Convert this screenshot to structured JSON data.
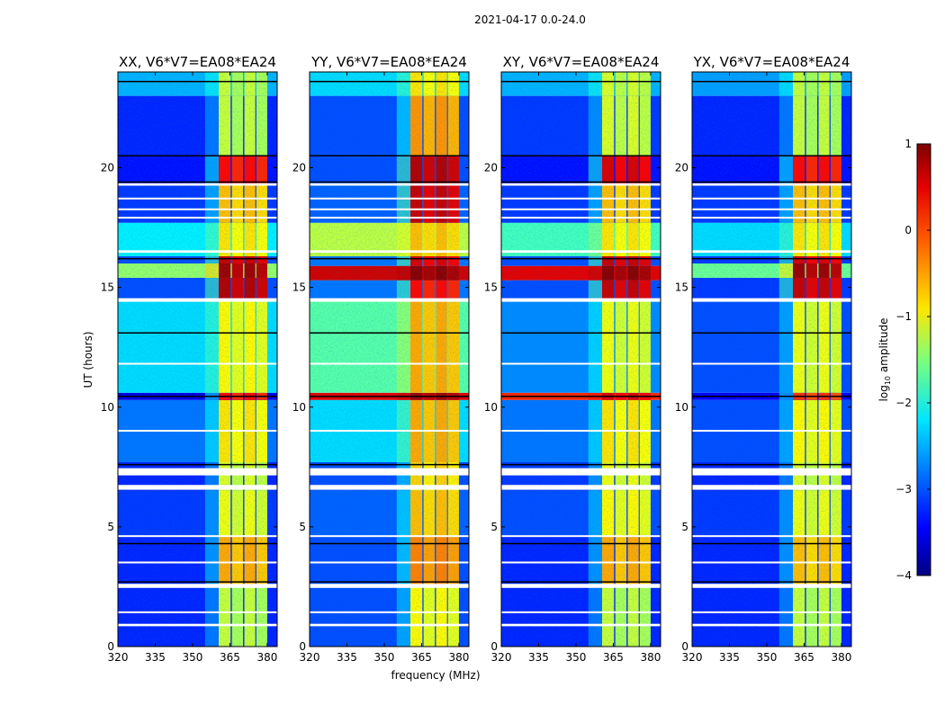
{
  "chart_data": {
    "type": "heatmap",
    "title": "2021-04-17 0.0-24.0",
    "xlabel": "frequency (MHz)",
    "ylabel": "UT (hours)",
    "xlim": [
      320,
      384
    ],
    "ylim": [
      0,
      24
    ],
    "xticks": [
      "320",
      "335",
      "350",
      "365",
      "380"
    ],
    "xtick_values": [
      320,
      335,
      350,
      365,
      380
    ],
    "yticks": [
      "0",
      "5",
      "10",
      "15",
      "20"
    ],
    "ytick_values": [
      0,
      5,
      10,
      15,
      20
    ],
    "colorbar": {
      "label_main": "log",
      "label_sub": "10",
      "label_rest": " amplitude",
      "range": [
        -4,
        1
      ],
      "ticks": [
        "−4",
        "−3",
        "−2",
        "−1",
        "0",
        "1"
      ],
      "tick_values": [
        -4,
        -3,
        -2,
        -1,
        0,
        1
      ],
      "colormap": "jet"
    },
    "subbands_mhz": [
      [
        360.5,
        365.3
      ],
      [
        365.8,
        370.3
      ],
      [
        370.8,
        375.2
      ],
      [
        375.6,
        380.0
      ]
    ],
    "flagged_hours": [
      [
        0.85,
        0.95
      ],
      [
        1.4,
        1.47
      ],
      [
        2.45,
        2.62
      ],
      [
        3.5,
        3.55
      ],
      [
        4.6,
        4.65
      ],
      [
        6.55,
        6.75
      ],
      [
        7.15,
        7.45
      ],
      [
        9.0,
        9.05
      ],
      [
        11.8,
        11.85
      ],
      [
        14.4,
        14.55
      ],
      [
        16.45,
        16.55
      ],
      [
        17.9,
        17.95
      ],
      [
        18.25,
        18.3
      ],
      [
        18.7,
        18.75
      ],
      [
        19.25,
        19.35
      ]
    ],
    "black_line_hours": [
      2.7,
      4.3,
      7.6,
      10.45,
      13.1,
      16.2,
      19.4,
      20.5,
      23.6
    ],
    "panels": [
      {
        "title": "XX, V6*V7=EA08*EA24",
        "segments": [
          [
            0,
            2.5,
            -3.2,
            -1.2
          ],
          [
            2.5,
            4.6,
            -3.2,
            -0.5
          ],
          [
            4.6,
            6.5,
            -3.1,
            -1.0
          ],
          [
            6.5,
            7.7,
            -3.2,
            -1.1
          ],
          [
            7.7,
            10.3,
            -2.8,
            -0.8
          ],
          [
            10.3,
            10.6,
            -3.5,
            0.3
          ],
          [
            10.6,
            14.5,
            -2.3,
            -0.9
          ],
          [
            14.5,
            15.4,
            -3.0,
            0.7
          ],
          [
            15.4,
            16.0,
            -1.4,
            0.8
          ],
          [
            16.0,
            16.3,
            -3.0,
            0.6
          ],
          [
            16.3,
            17.7,
            -2.2,
            -0.8
          ],
          [
            17.7,
            19.3,
            -3.1,
            -0.6
          ],
          [
            19.3,
            20.5,
            -3.3,
            0.3
          ],
          [
            20.5,
            23.0,
            -3.2,
            -1.2
          ],
          [
            23.0,
            24.0,
            -2.5,
            -1.2
          ]
        ]
      },
      {
        "title": "YY, V6*V7=EA08*EA24",
        "segments": [
          [
            0,
            2.5,
            -3.0,
            -0.9
          ],
          [
            2.5,
            4.6,
            -3.0,
            -0.3
          ],
          [
            4.6,
            6.5,
            -2.9,
            -0.6
          ],
          [
            6.5,
            7.7,
            -3.0,
            -0.7
          ],
          [
            7.7,
            10.3,
            -2.3,
            -0.5
          ],
          [
            10.3,
            10.6,
            0.5,
            0.8
          ],
          [
            10.6,
            14.5,
            -1.7,
            -0.5
          ],
          [
            14.5,
            15.3,
            -2.8,
            0.3
          ],
          [
            15.3,
            15.9,
            0.6,
            0.9
          ],
          [
            15.9,
            16.3,
            -2.8,
            0.5
          ],
          [
            16.3,
            17.7,
            -1.2,
            -0.6
          ],
          [
            17.7,
            19.3,
            -2.9,
            0.6
          ],
          [
            19.3,
            20.5,
            -3.0,
            0.7
          ],
          [
            20.5,
            23.0,
            -3.0,
            -0.4
          ],
          [
            23.0,
            24.0,
            -2.3,
            -0.8
          ]
        ]
      },
      {
        "title": "XY, V6*V7=EA08*EA24",
        "segments": [
          [
            0,
            2.5,
            -3.2,
            -1.2
          ],
          [
            2.5,
            4.6,
            -3.2,
            -0.5
          ],
          [
            4.6,
            6.5,
            -3.0,
            -0.9
          ],
          [
            6.5,
            7.7,
            -3.1,
            -1.0
          ],
          [
            7.7,
            10.3,
            -2.8,
            -0.8
          ],
          [
            10.3,
            10.6,
            0.2,
            0.5
          ],
          [
            10.6,
            14.5,
            -2.7,
            -1.0
          ],
          [
            14.5,
            15.3,
            -3.0,
            0.6
          ],
          [
            15.3,
            15.9,
            0.5,
            0.9
          ],
          [
            15.9,
            16.3,
            -3.0,
            0.6
          ],
          [
            16.3,
            17.7,
            -1.8,
            -0.8
          ],
          [
            17.7,
            19.3,
            -3.1,
            -0.6
          ],
          [
            19.3,
            20.5,
            -3.3,
            0.5
          ],
          [
            20.5,
            23.0,
            -3.1,
            -1.1
          ],
          [
            23.0,
            24.0,
            -2.5,
            -1.1
          ]
        ]
      },
      {
        "title": "YX, V6*V7=EA08*EA24",
        "segments": [
          [
            0,
            2.5,
            -3.2,
            -1.2
          ],
          [
            2.5,
            4.6,
            -3.2,
            -0.6
          ],
          [
            4.6,
            6.5,
            -3.1,
            -1.0
          ],
          [
            6.5,
            7.7,
            -3.2,
            -1.1
          ],
          [
            7.7,
            10.3,
            -3.0,
            -0.9
          ],
          [
            10.3,
            10.6,
            -3.4,
            0.1
          ],
          [
            10.6,
            14.5,
            -3.0,
            -1.0
          ],
          [
            14.5,
            15.4,
            -3.1,
            0.6
          ],
          [
            15.4,
            16.0,
            -1.6,
            0.8
          ],
          [
            16.0,
            16.3,
            -3.1,
            0.5
          ],
          [
            16.3,
            17.7,
            -2.3,
            -0.8
          ],
          [
            17.7,
            19.3,
            -3.1,
            -0.6
          ],
          [
            19.3,
            20.5,
            -3.3,
            0.3
          ],
          [
            20.5,
            23.0,
            -3.2,
            -1.2
          ],
          [
            23.0,
            24.0,
            -2.6,
            -1.2
          ]
        ]
      }
    ]
  }
}
